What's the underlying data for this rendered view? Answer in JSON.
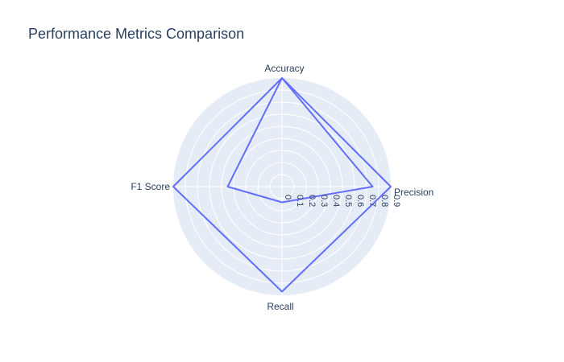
{
  "chart_data": {
    "type": "radar",
    "title": "Performance Metrics Comparison",
    "categories": [
      "Accuracy",
      "Precision",
      "Recall",
      "F1 Score"
    ],
    "radial_ticks": [
      "0",
      "0.1",
      "0.2",
      "0.3",
      "0.4",
      "0.5",
      "0.6",
      "0.7",
      "0.8",
      "0.9"
    ],
    "radial_range": [
      0,
      0.9
    ],
    "series": [
      {
        "values": [
          0.9,
          0.9,
          0.87,
          0.9
        ]
      },
      {
        "values": [
          0.9,
          0.75,
          0.13,
          0.45
        ]
      }
    ],
    "grid": true,
    "legend": "none"
  },
  "colors": {
    "polar_bg": "#e5ecf6",
    "grid": "#ffffff",
    "line": "#636efa",
    "text": "#2a3f5f"
  }
}
